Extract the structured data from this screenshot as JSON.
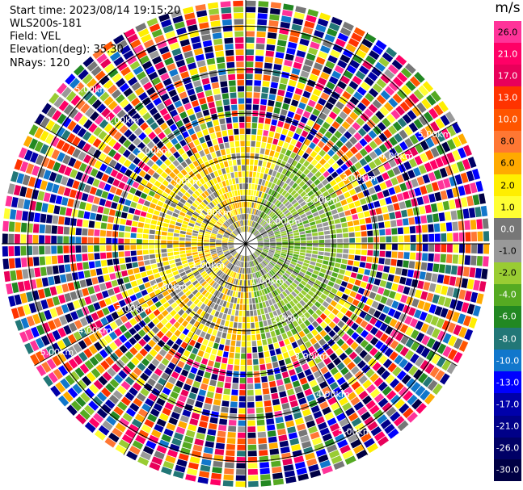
{
  "info": {
    "start_time": "Start time: 2023/08/14 19:15:20",
    "instrument": "WLS200s-181",
    "field": "Field: VEL",
    "elevation": "Elevation(deg): 35.30",
    "nrays": "NRays: 120"
  },
  "colorbar": {
    "unit": "m/s",
    "labels": [
      "26.0",
      "21.0",
      "17.0",
      "13.0",
      "10.0",
      "8.0",
      "6.0",
      "2.0",
      "1.0",
      "0.0",
      "-1.0",
      "-2.0",
      "-4.0",
      "-6.0",
      "-8.0",
      "-10.0",
      "-13.0",
      "-17.0",
      "-21.0",
      "-26.0",
      "-30.0"
    ],
    "colors": [
      "#ff3399",
      "#ff0066",
      "#e8005a",
      "#ff3300",
      "#ff5500",
      "#ff7733",
      "#ffaa00",
      "#ffee00",
      "#ffff33",
      "#777777",
      "#999999",
      "#99cc33",
      "#55aa22",
      "#228822",
      "#227777",
      "#1177cc",
      "#0000ff",
      "#0000aa",
      "#000088",
      "#000066",
      "#000044"
    ]
  },
  "chart_data": {
    "type": "ppi",
    "field": "VEL",
    "unit": "m/s",
    "nrays": 120,
    "elevation_deg": 35.3,
    "range_rings_km": [
      1.0,
      2.0,
      3.0,
      4.0,
      5.0
    ],
    "range_ring_labels": [
      "1.00km",
      "2.00km",
      "3.00km",
      "4.00km",
      "5.00km"
    ],
    "ray_directions_deg": [
      0,
      30,
      60,
      90,
      120,
      150,
      180,
      210,
      240,
      270,
      300,
      330
    ],
    "colorbar_levels": [
      -30,
      -26,
      -21,
      -17,
      -13,
      -10,
      -8,
      -6,
      -4,
      -2,
      -1,
      0,
      1,
      2,
      6,
      8,
      10,
      13,
      17,
      21,
      26
    ]
  }
}
